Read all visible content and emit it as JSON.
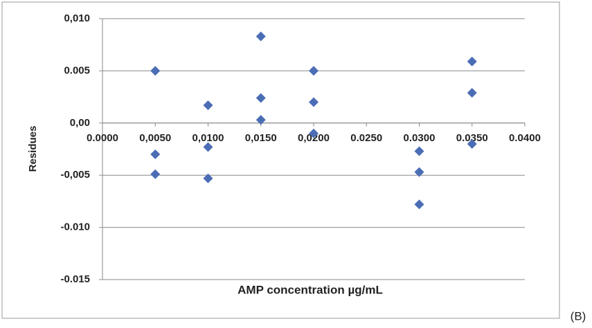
{
  "chart_data": {
    "type": "scatter",
    "x_label": "AMP concentration µg/mL",
    "y_label": "Residues",
    "annotation": "(B)",
    "series": [
      {
        "color": "#4a6db5",
        "x": [
          0.005,
          0.005,
          0.005,
          0.01,
          0.01,
          0.01,
          0.015,
          0.015,
          0.015,
          0.02,
          0.02,
          0.02,
          0.03,
          0.03,
          0.03,
          0.035,
          0.035,
          0.035
        ],
        "values": [
          0.005,
          -0.003,
          -0.0049,
          0.0017,
          -0.0023,
          -0.0053,
          0.0083,
          0.0024,
          0.0003,
          0.005,
          0.002,
          -0.001,
          -0.0027,
          -0.0047,
          -0.0078,
          0.0059,
          0.0029,
          -0.002
        ]
      }
    ],
    "xlim": [
      0,
      0.04
    ],
    "ylim": [
      -0.015,
      0.01
    ],
    "xticks": [
      {
        "value": 0,
        "label": "0.0000"
      },
      {
        "value": 0.005,
        "label": "0,0050"
      },
      {
        "value": 0.01,
        "label": "0,0100"
      },
      {
        "value": 0.015,
        "label": "0,0150"
      },
      {
        "value": 0.02,
        "label": "0,0200"
      },
      {
        "value": 0.025,
        "label": "0.0250"
      },
      {
        "value": 0.03,
        "label": "0.0300"
      },
      {
        "value": 0.035,
        "label": "0.0350"
      },
      {
        "value": 0.04,
        "label": "0.0400"
      }
    ],
    "yticks": [
      {
        "value": 0.01,
        "label": "0,010"
      },
      0.005,
      {
        "value": 0,
        "label": "0,00"
      },
      {
        "value": -0.005,
        "label": "-0,005"
      },
      {
        "value": -0.01,
        "label": "-0.010"
      },
      -0.015
    ],
    "grid": true
  }
}
